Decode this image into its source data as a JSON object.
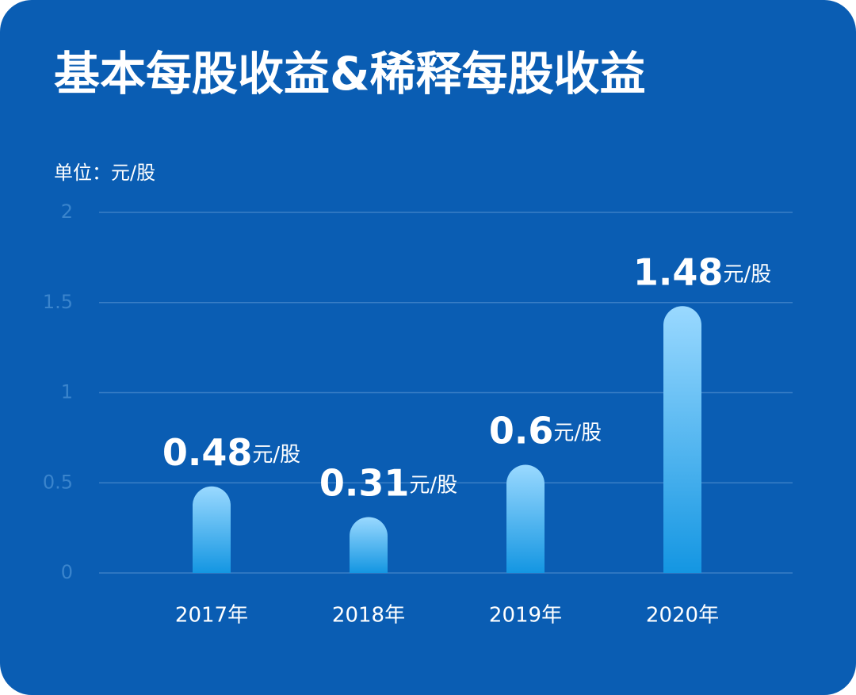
{
  "chart_data": {
    "type": "bar",
    "title": "基本每股收益&稀释每股收益",
    "unit_label": "单位：元/股",
    "categories": [
      "2017年",
      "2018年",
      "2019年",
      "2020年"
    ],
    "values": [
      0.48,
      0.31,
      0.6,
      1.48
    ],
    "value_labels": [
      "0.48元/股",
      "0.31元/股",
      "0.6元/股",
      "1.48元/股"
    ],
    "color": "#2aa3ea",
    "ylim": [
      0,
      2
    ],
    "yticks": [
      0,
      0.5,
      1,
      1.5,
      2
    ],
    "grid": true
  }
}
